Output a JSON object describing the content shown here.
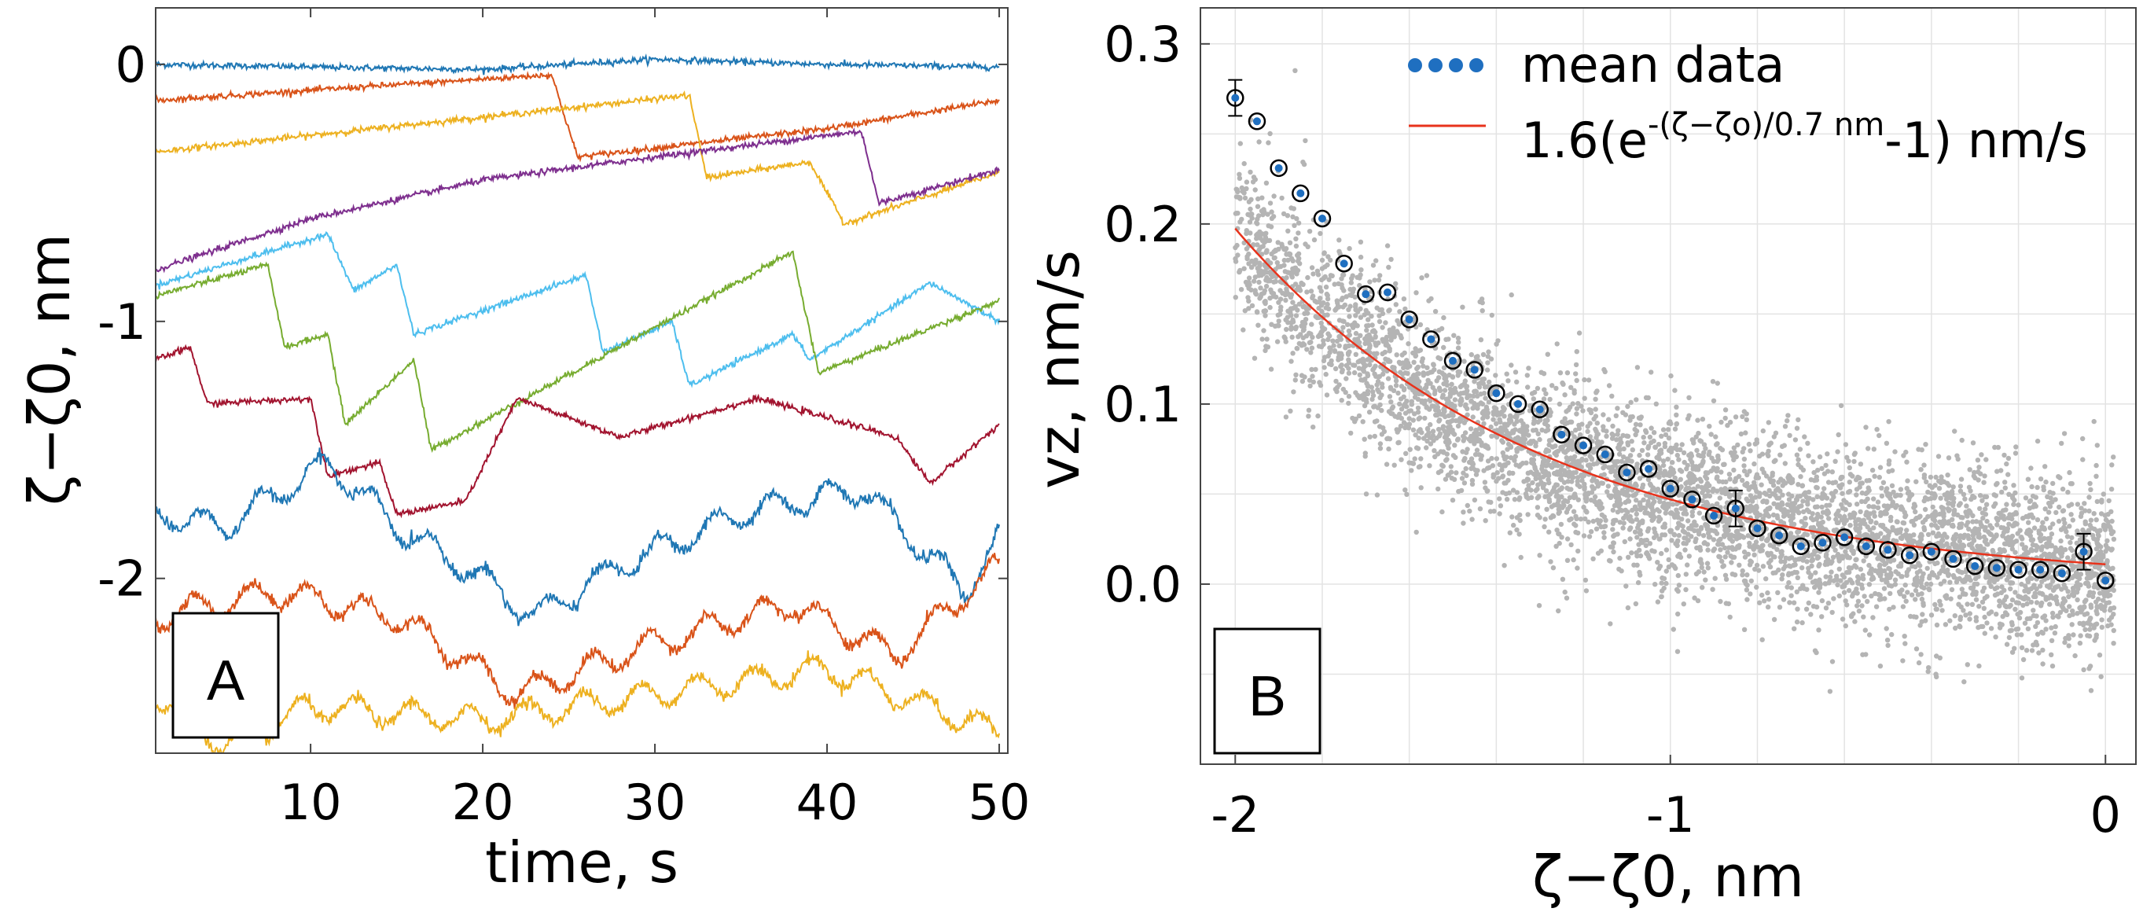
{
  "chart_data": [
    {
      "type": "line",
      "panel_label": "A",
      "xlabel": "time, s",
      "ylabel": "ζ−ζ0, nm",
      "xlim": [
        1,
        50.5
      ],
      "ylim": [
        -2.68,
        0.22
      ],
      "x_ticks": [
        "10",
        "20",
        "30",
        "40",
        "50"
      ],
      "y_ticks": [
        "0",
        "-1",
        "-2"
      ],
      "grid": false,
      "series": [
        {
          "name": "trace 1",
          "color": "#1f77b4",
          "points": [
            [
              1,
              0.0
            ],
            [
              10,
              -0.01
            ],
            [
              20,
              -0.02
            ],
            [
              30,
              0.02
            ],
            [
              40,
              0.0
            ],
            [
              50,
              -0.01
            ]
          ]
        },
        {
          "name": "trace 2",
          "color": "#d95319",
          "points": [
            [
              1,
              -0.14
            ],
            [
              24,
              -0.04
            ],
            [
              25.5,
              -0.36
            ],
            [
              40,
              -0.25
            ],
            [
              50,
              -0.14
            ]
          ]
        },
        {
          "name": "trace 3",
          "color": "#edb120",
          "points": [
            [
              1,
              -0.34
            ],
            [
              32,
              -0.12
            ],
            [
              33,
              -0.44
            ],
            [
              39,
              -0.38
            ],
            [
              41,
              -0.62
            ],
            [
              50,
              -0.42
            ]
          ]
        },
        {
          "name": "trace 4",
          "color": "#7e2f8e",
          "points": [
            [
              1,
              -0.8
            ],
            [
              10,
              -0.6
            ],
            [
              20,
              -0.45
            ],
            [
              30,
              -0.36
            ],
            [
              42,
              -0.26
            ],
            [
              43,
              -0.54
            ],
            [
              50,
              -0.41
            ]
          ]
        },
        {
          "name": "trace 5",
          "color": "#4dbeee",
          "points": [
            [
              1,
              -0.86
            ],
            [
              11,
              -0.66
            ],
            [
              12.5,
              -0.88
            ],
            [
              15,
              -0.78
            ],
            [
              16,
              -1.05
            ],
            [
              26,
              -0.82
            ],
            [
              27,
              -1.12
            ],
            [
              31,
              -1.0
            ],
            [
              32,
              -1.25
            ],
            [
              38,
              -1.05
            ],
            [
              39,
              -1.15
            ],
            [
              46,
              -0.85
            ],
            [
              50,
              -1.0
            ]
          ]
        },
        {
          "name": "trace 6",
          "color": "#77ac30",
          "points": [
            [
              1,
              -0.9
            ],
            [
              7.5,
              -0.78
            ],
            [
              8.5,
              -1.1
            ],
            [
              11,
              -1.05
            ],
            [
              12,
              -1.4
            ],
            [
              16,
              -1.15
            ],
            [
              17,
              -1.5
            ],
            [
              38,
              -0.73
            ],
            [
              39.5,
              -1.2
            ],
            [
              50,
              -0.92
            ]
          ]
        },
        {
          "name": "trace 7",
          "color": "#a2142f",
          "points": [
            [
              1,
              -1.15
            ],
            [
              3,
              -1.1
            ],
            [
              4,
              -1.32
            ],
            [
              10,
              -1.3
            ],
            [
              11,
              -1.6
            ],
            [
              14,
              -1.55
            ],
            [
              15,
              -1.75
            ],
            [
              19,
              -1.7
            ],
            [
              22,
              -1.3
            ],
            [
              28,
              -1.45
            ],
            [
              36,
              -1.3
            ],
            [
              44,
              -1.45
            ],
            [
              46,
              -1.63
            ],
            [
              50,
              -1.4
            ]
          ]
        },
        {
          "name": "trace 8",
          "color": "#1f77b4",
          "points": [
            [
              1,
              -1.75
            ],
            [
              5,
              -1.8
            ],
            [
              11,
              -1.55
            ],
            [
              15,
              -1.8
            ],
            [
              20,
              -2.0
            ],
            [
              23,
              -2.15
            ],
            [
              28,
              -1.95
            ],
            [
              35,
              -1.75
            ],
            [
              42,
              -1.65
            ],
            [
              48,
              -2.05
            ],
            [
              50,
              -1.85
            ]
          ]
        },
        {
          "name": "trace 9",
          "color": "#d95319",
          "points": [
            [
              1,
              -2.15
            ],
            [
              8,
              -2.05
            ],
            [
              15,
              -2.15
            ],
            [
              22,
              -2.45
            ],
            [
              30,
              -2.25
            ],
            [
              38,
              -2.1
            ],
            [
              44,
              -2.3
            ],
            [
              50,
              -1.95
            ]
          ]
        },
        {
          "name": "trace 10",
          "color": "#edb120",
          "points": [
            [
              1,
              -2.45
            ],
            [
              5,
              -2.65
            ],
            [
              10,
              -2.5
            ],
            [
              20,
              -2.55
            ],
            [
              30,
              -2.45
            ],
            [
              40,
              -2.35
            ],
            [
              46,
              -2.5
            ],
            [
              50,
              -2.6
            ]
          ]
        }
      ]
    },
    {
      "type": "scatter",
      "panel_label": "B",
      "xlabel": "ζ−ζ0,  nm",
      "ylabel": "vz, nm/s",
      "xlim": [
        -2.08,
        0.07
      ],
      "ylim": [
        -0.1,
        0.32
      ],
      "x_ticks": [
        "-2",
        "-1",
        "0"
      ],
      "y_ticks": [
        "0.0",
        "0.1",
        "0.2",
        "0.3"
      ],
      "grid": true,
      "scatter_color": "#b4b4b4",
      "legend_position": "top-right",
      "legend": [
        {
          "label": "mean data",
          "marker": "dots",
          "color": "#1f6fc0"
        },
        {
          "label_base": "1.6(e",
          "label_sup": "-(ζ−ζo)/0.7 nm",
          "label_tail": "-1) nm/s",
          "marker": "line",
          "color": "#e8331c"
        }
      ],
      "fit": {
        "amplitude": 1.6,
        "length_scale_nm": 0.7,
        "color": "#e8331c"
      },
      "mean_data": {
        "x": [
          -2.0,
          -1.95,
          -1.9,
          -1.85,
          -1.8,
          -1.75,
          -1.7,
          -1.65,
          -1.6,
          -1.55,
          -1.5,
          -1.45,
          -1.4,
          -1.35,
          -1.3,
          -1.25,
          -1.2,
          -1.15,
          -1.1,
          -1.05,
          -1.0,
          -0.95,
          -0.9,
          -0.85,
          -0.8,
          -0.75,
          -0.7,
          -0.65,
          -0.6,
          -0.55,
          -0.5,
          -0.45,
          -0.4,
          -0.35,
          -0.3,
          -0.25,
          -0.2,
          -0.15,
          -0.1,
          -0.05,
          0.0
        ],
        "y": [
          0.27,
          0.257,
          0.231,
          0.217,
          0.203,
          0.178,
          0.161,
          0.162,
          0.147,
          0.136,
          0.124,
          0.119,
          0.106,
          0.1,
          0.097,
          0.083,
          0.077,
          0.072,
          0.062,
          0.064,
          0.053,
          0.047,
          0.038,
          0.042,
          0.031,
          0.027,
          0.021,
          0.023,
          0.026,
          0.021,
          0.019,
          0.016,
          0.018,
          0.014,
          0.01,
          0.009,
          0.008,
          0.008,
          0.006,
          0.018,
          0.002
        ],
        "error_bars_on_points": [
          "-2.0",
          "-0.85",
          "-0.05"
        ]
      }
    }
  ]
}
